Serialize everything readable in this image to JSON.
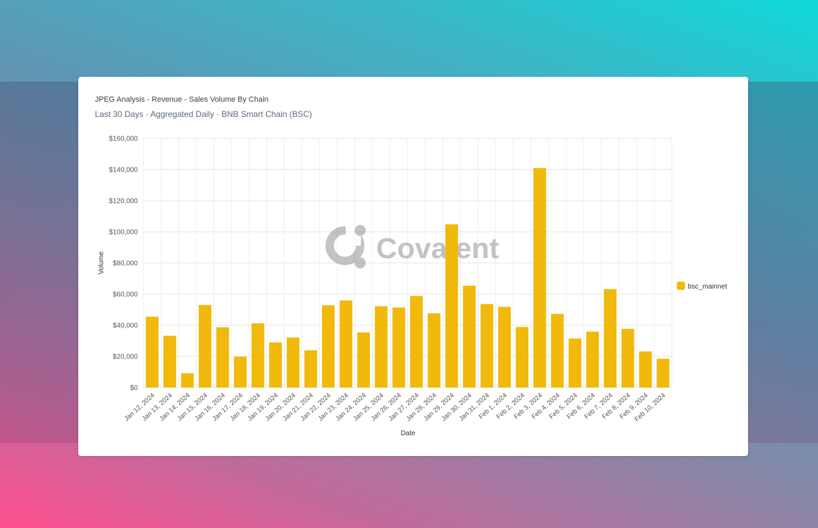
{
  "card": {
    "title": "JPEG Analysis - Revenue - Sales Volume By Chain",
    "subtitle": "Last 30 Days · Aggregated Daily · BNB Smart Chain (BSC)"
  },
  "watermark": {
    "text": "Covalent"
  },
  "chart_data": {
    "type": "bar",
    "xlabel": "Date",
    "ylabel": "Volume",
    "ylim": [
      0,
      160000
    ],
    "yticks": [
      "$0",
      "$20,000",
      "$40,000",
      "$60,000",
      "$80,000",
      "$100,000",
      "$120,000",
      "$140,000",
      "$160,000"
    ],
    "grid": true,
    "legend_position": "right",
    "categories": [
      "Jan 12, 2024",
      "Jan 13, 2024",
      "Jan 14, 2024",
      "Jan 15, 2024",
      "Jan 16, 2024",
      "Jan 17, 2024",
      "Jan 18, 2024",
      "Jan 19, 2024",
      "Jan 20, 2024",
      "Jan 21, 2024",
      "Jan 22, 2024",
      "Jan 23, 2024",
      "Jan 24, 2024",
      "Jan 25, 2024",
      "Jan 26, 2024",
      "Jan 27, 2024",
      "Jan 28, 2024",
      "Jan 29, 2024",
      "Jan 30, 2024",
      "Jan 31, 2024",
      "Feb 1, 2024",
      "Feb 2, 2024",
      "Feb 3, 2024",
      "Feb 4, 2024",
      "Feb 5, 2024",
      "Feb 6, 2024",
      "Feb 7, 2024",
      "Feb 8, 2024",
      "Feb 9, 2024",
      "Feb 10, 2024"
    ],
    "series": [
      {
        "name": "bsc_mainnet",
        "color": "#f0b90b",
        "values": [
          45500,
          33200,
          9200,
          53000,
          38700,
          19800,
          41200,
          29000,
          32100,
          23900,
          52800,
          55900,
          35400,
          52200,
          51400,
          58800,
          47700,
          104800,
          65400,
          53600,
          51800,
          38900,
          141000,
          47300,
          31500,
          35900,
          63200,
          37700,
          23200,
          18500
        ]
      }
    ]
  }
}
